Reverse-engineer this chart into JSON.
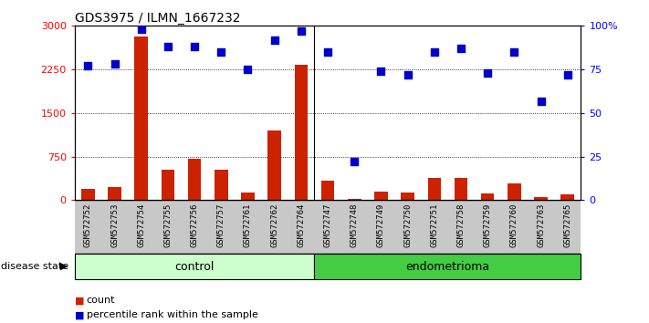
{
  "title": "GDS3975 / ILMN_1667232",
  "samples": [
    "GSM572752",
    "GSM572753",
    "GSM572754",
    "GSM572755",
    "GSM572756",
    "GSM572757",
    "GSM572761",
    "GSM572762",
    "GSM572764",
    "GSM572747",
    "GSM572748",
    "GSM572749",
    "GSM572750",
    "GSM572751",
    "GSM572758",
    "GSM572759",
    "GSM572760",
    "GSM572763",
    "GSM572765"
  ],
  "counts": [
    200,
    220,
    2820,
    530,
    720,
    530,
    130,
    1200,
    2330,
    340,
    30,
    150,
    130,
    380,
    390,
    110,
    290,
    60,
    100
  ],
  "percentiles": [
    77,
    78,
    98,
    88,
    88,
    85,
    75,
    92,
    97,
    85,
    22,
    74,
    72,
    85,
    87,
    73,
    85,
    57,
    72
  ],
  "control_count": 9,
  "ylim_left": [
    0,
    3000
  ],
  "ylim_right": [
    0,
    100
  ],
  "yticks_left": [
    0,
    750,
    1500,
    2250,
    3000
  ],
  "yticks_left_labels": [
    "0",
    "750",
    "1500",
    "2250",
    "3000"
  ],
  "yticks_right": [
    0,
    25,
    50,
    75,
    100
  ],
  "yticks_right_labels": [
    "0",
    "25",
    "50",
    "75",
    "100%"
  ],
  "bar_color": "#cc2200",
  "dot_color": "#0000cc",
  "control_bg_main": "#ffffff",
  "endometrioma_bg_main": "#ffffff",
  "control_bg_group": "#ccffcc",
  "endometrioma_bg_group": "#44cc44",
  "tick_label_bg": "#c8c8c8",
  "grid_color": "#000000",
  "disease_state_label": "disease state",
  "control_label": "control",
  "endometrioma_label": "endometrioma",
  "legend_count_label": "count",
  "legend_pct_label": "percentile rank within the sample"
}
